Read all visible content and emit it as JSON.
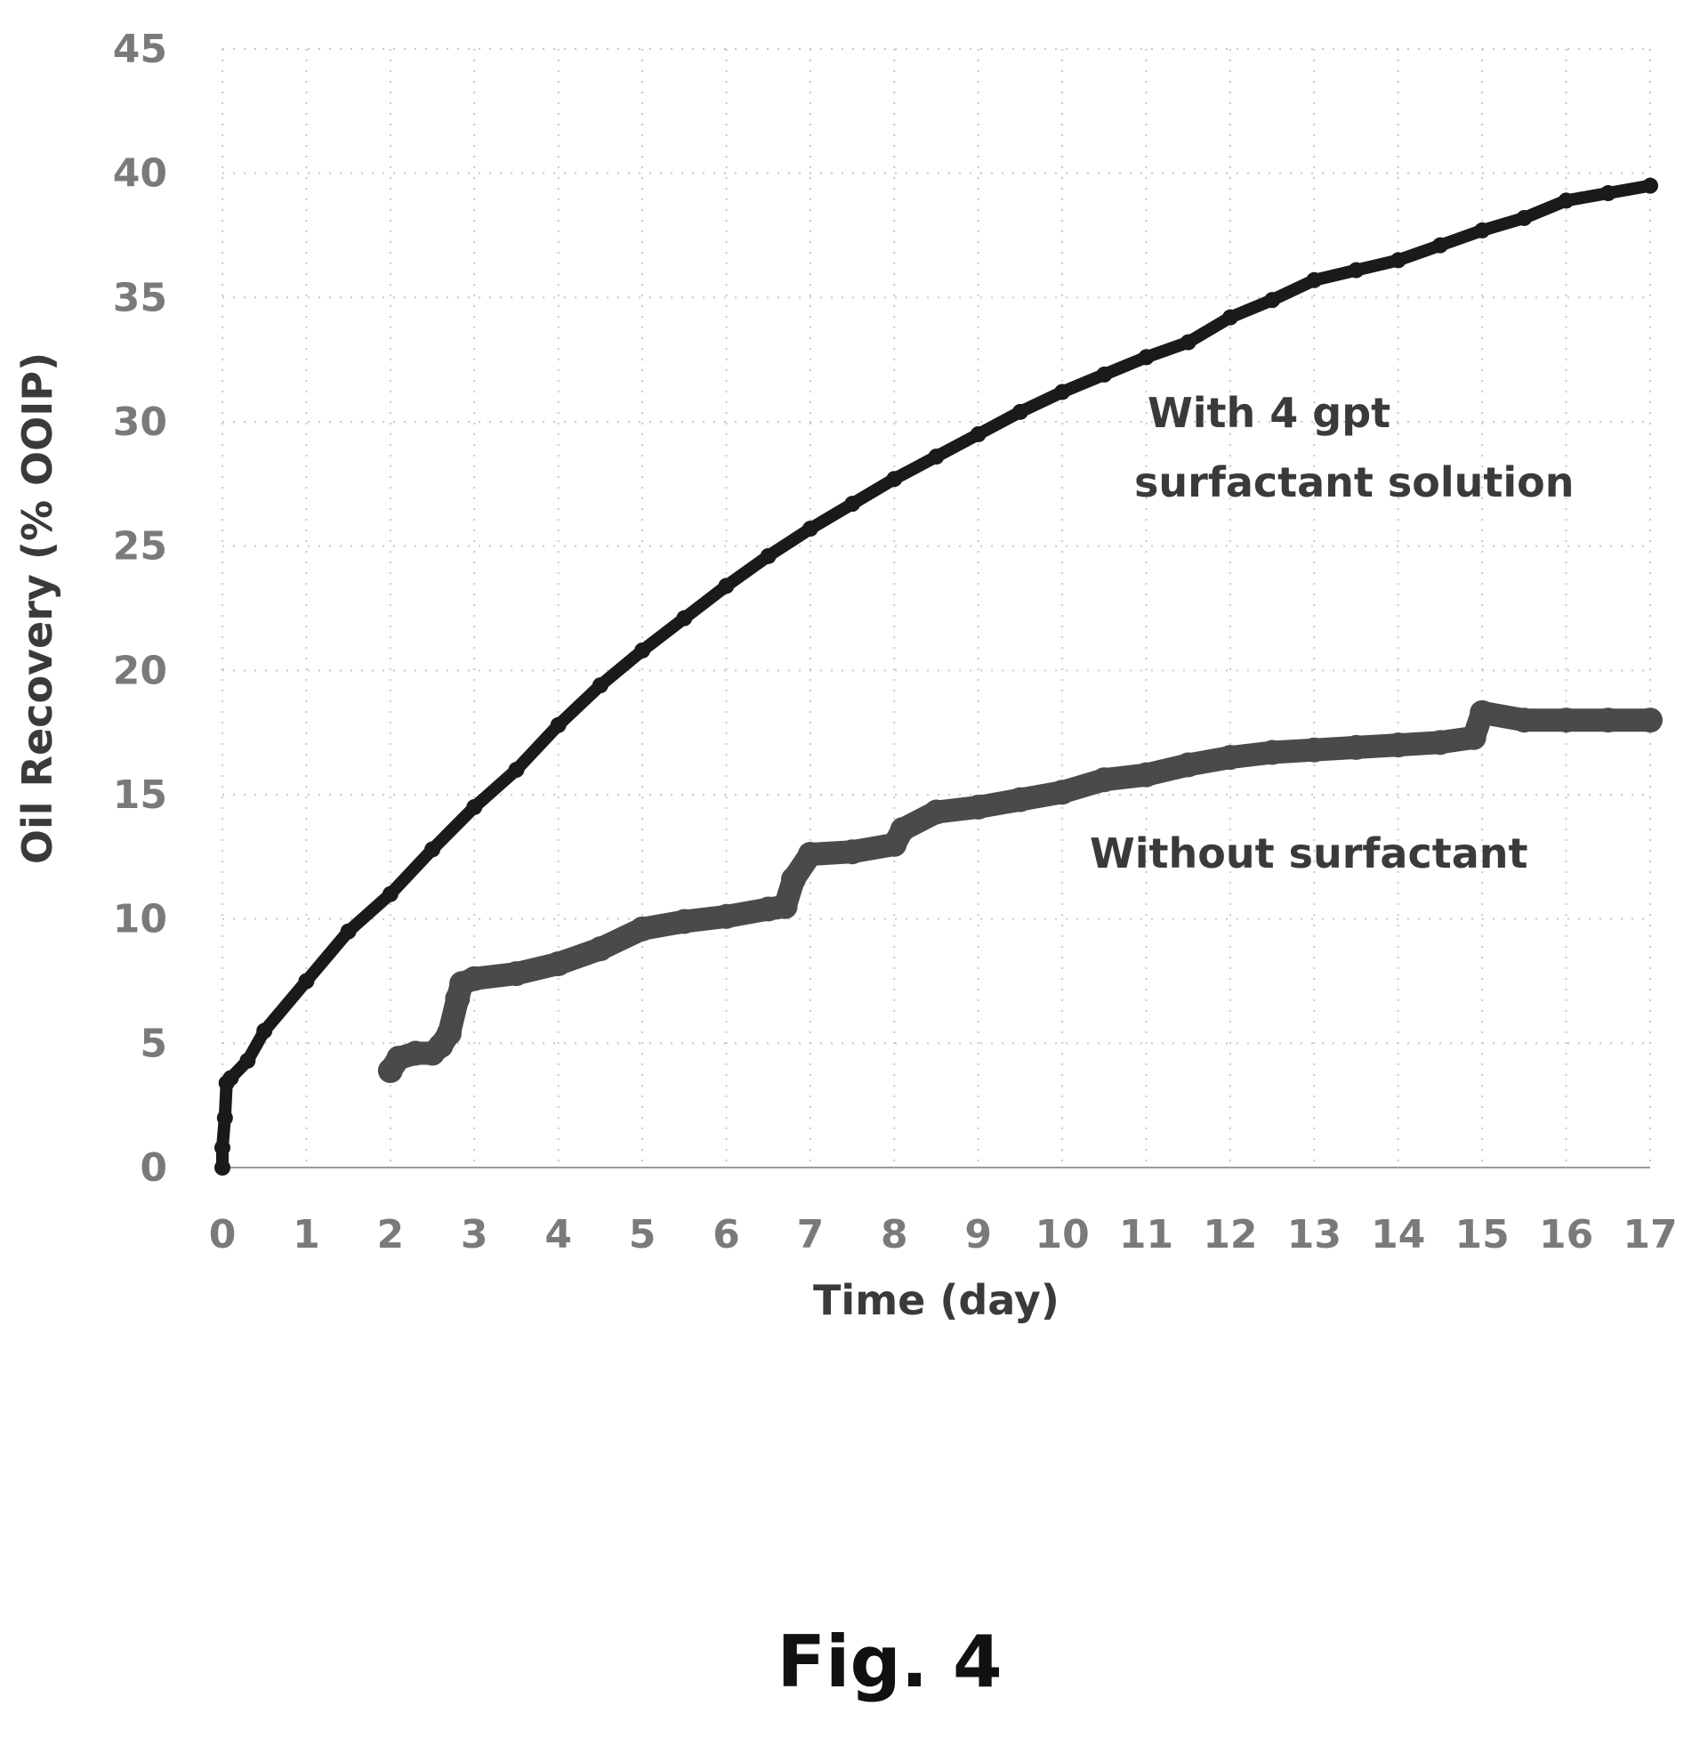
{
  "figure_caption": "Fig. 4",
  "chart_data": {
    "type": "line",
    "xlabel": "Time (day)",
    "ylabel": "Oil Recovery (% OOIP)",
    "xlim": [
      0,
      17
    ],
    "ylim": [
      0,
      45
    ],
    "xticks": [
      "0",
      "1",
      "2",
      "3",
      "4",
      "5",
      "6",
      "7",
      "8",
      "9",
      "10",
      "11",
      "12",
      "13",
      "14",
      "15",
      "16",
      "17"
    ],
    "yticks": [
      "0",
      "5",
      "10",
      "15",
      "20",
      "25",
      "30",
      "35",
      "40",
      "45"
    ],
    "grid": true,
    "series": [
      {
        "name": "With 4 gpt surfactant solution",
        "color": "#1a1a1a",
        "x": [
          0,
          0,
          0.03,
          0.05,
          0.1,
          0.3,
          0.5,
          1,
          1.5,
          2,
          2.5,
          3,
          3.5,
          4,
          4.5,
          5,
          5.5,
          6,
          6.5,
          7,
          7.5,
          8,
          8.5,
          9,
          9.5,
          10,
          10.5,
          11,
          11.5,
          12,
          12.5,
          13,
          13.5,
          14,
          14.5,
          15,
          15.5,
          16,
          16.5,
          17
        ],
        "y": [
          0,
          0.8,
          2,
          3.4,
          3.6,
          4.3,
          5.5,
          7.5,
          9.5,
          11.0,
          12.8,
          14.5,
          16.0,
          17.8,
          19.4,
          20.8,
          22.1,
          23.4,
          24.6,
          25.7,
          26.7,
          27.7,
          28.6,
          29.5,
          30.4,
          31.2,
          31.9,
          32.6,
          33.2,
          34.2,
          34.9,
          35.7,
          36.1,
          36.5,
          37.1,
          37.7,
          38.2,
          38.9,
          39.2,
          39.5
        ]
      },
      {
        "name": "Without surfactant",
        "color": "#4a4a4a",
        "x": [
          2,
          2.1,
          2.3,
          2.5,
          2.6,
          2.7,
          2.8,
          2.85,
          3,
          3.5,
          4,
          4.5,
          5,
          5.5,
          6,
          6.5,
          6.7,
          6.8,
          7,
          7.5,
          8,
          8.1,
          8.5,
          9,
          9.5,
          10,
          10.5,
          11,
          11.5,
          12,
          12.5,
          13,
          13.5,
          14,
          14.5,
          14.9,
          15,
          15.5,
          16,
          16.5,
          17
        ],
        "y": [
          3.9,
          4.4,
          4.6,
          4.6,
          4.9,
          5.4,
          6.8,
          7.4,
          7.6,
          7.8,
          8.2,
          8.8,
          9.6,
          9.9,
          10.1,
          10.4,
          10.5,
          11.6,
          12.6,
          12.7,
          13.0,
          13.6,
          14.3,
          14.5,
          14.8,
          15.1,
          15.6,
          15.8,
          16.2,
          16.5,
          16.7,
          16.8,
          16.9,
          17.0,
          17.1,
          17.3,
          18.3,
          18.0,
          18.0,
          18.0,
          18.0
        ]
      }
    ],
    "annotations": [
      {
        "text": "With 4 gpt",
        "series": 0
      },
      {
        "text": "surfactant solution",
        "series": 0
      },
      {
        "text": "Without surfactant",
        "series": 1
      }
    ]
  }
}
